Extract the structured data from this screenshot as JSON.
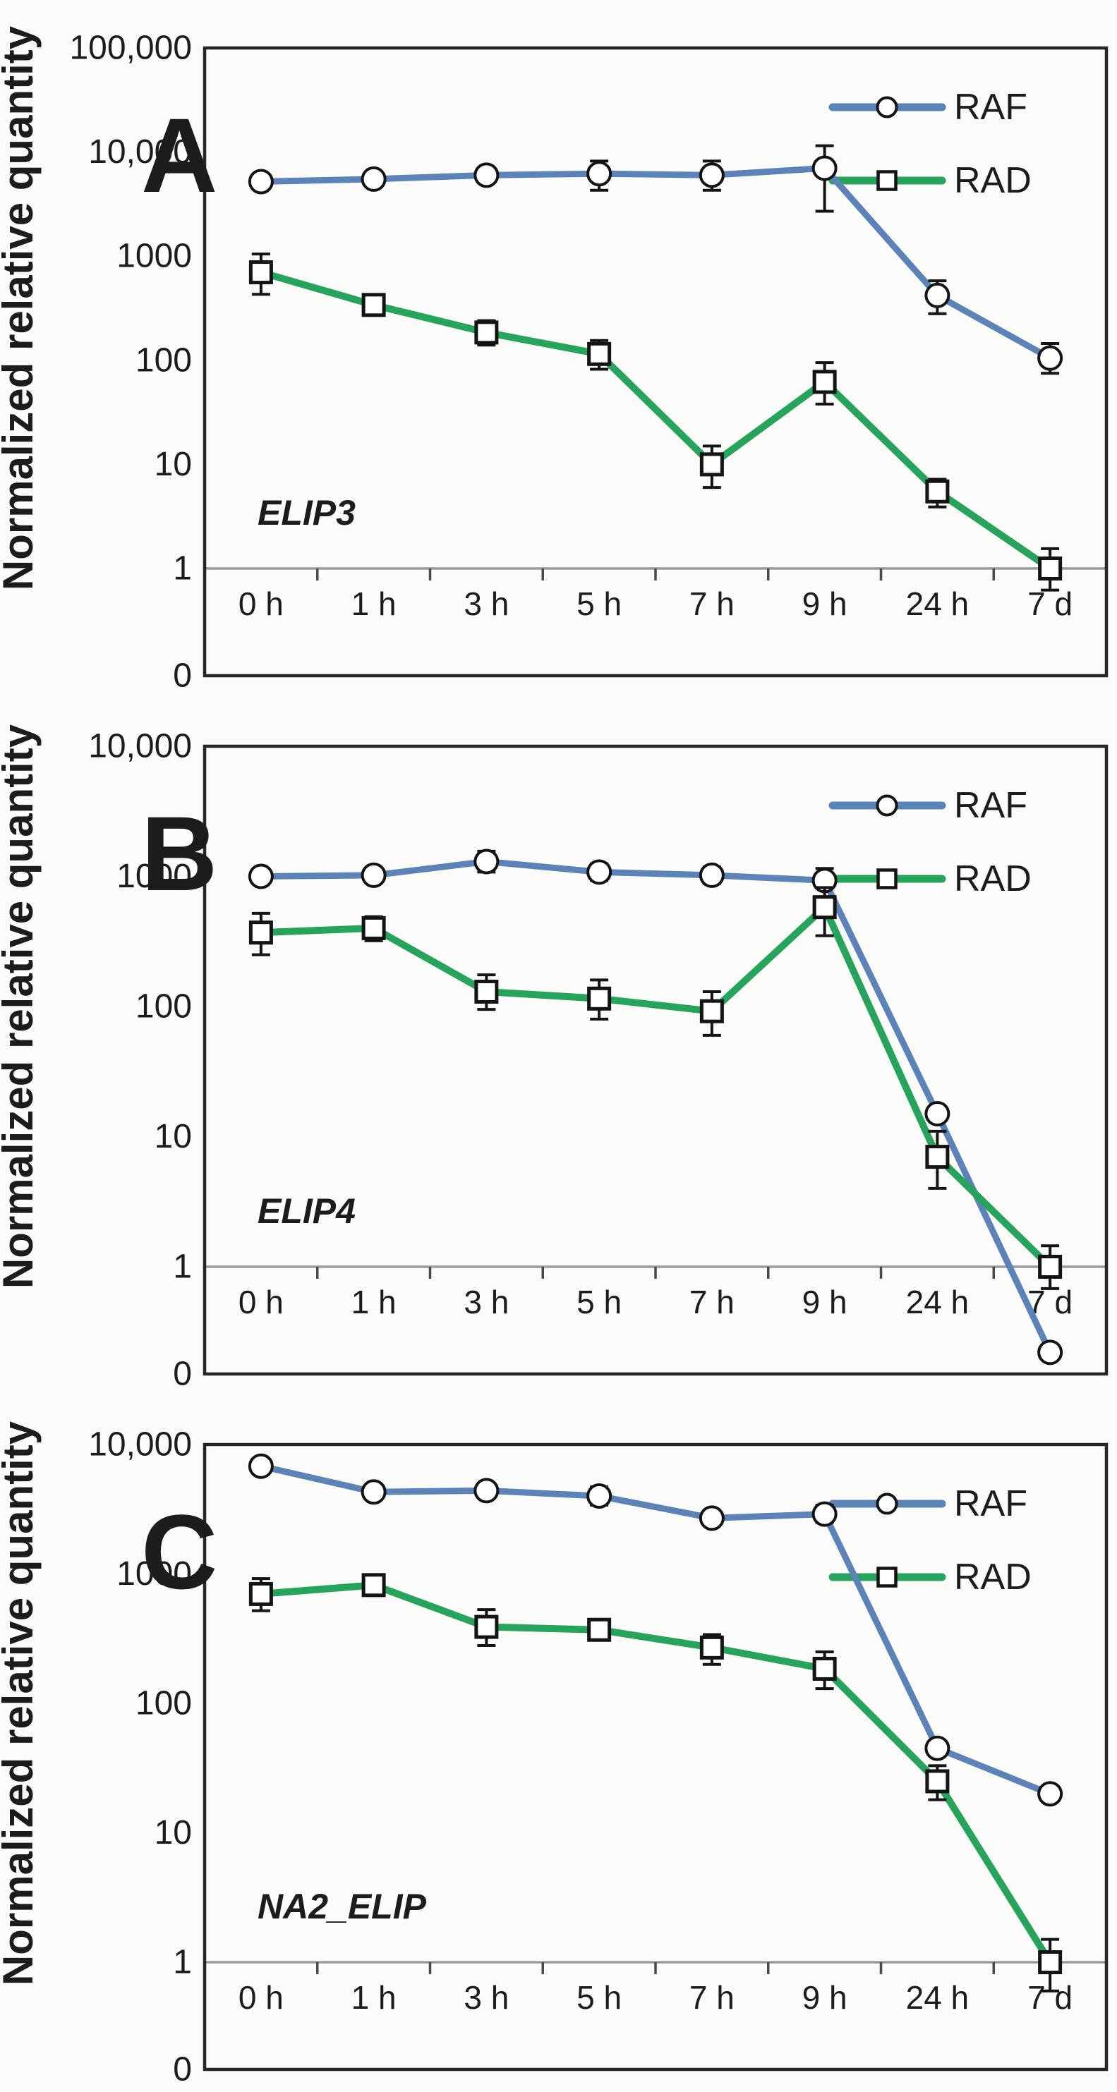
{
  "colors": {
    "raf": "#5b83b8",
    "rad": "#26a45c",
    "frame": "#262626",
    "baseline": "#9b9b9b",
    "tick": "#4a4a4a",
    "text": "#1c1c1c",
    "error": "#141414",
    "marker_fill": "#ffffff",
    "background": "#fbfbfa"
  },
  "chart_data": [
    {
      "type": "line",
      "panel_label": "A",
      "gene_label": "ELIP3",
      "ylabel": "Normalized relative quantity",
      "yscale": "log",
      "ylim": [
        1,
        100000
      ],
      "grid": "off",
      "legend_position": "top-right",
      "y_tick_labels": [
        "100,000",
        "10,000",
        "1000",
        "100",
        "10",
        "1",
        "0"
      ],
      "categories": [
        "0 h",
        "1 h",
        "3 h",
        "5 h",
        "7 h",
        "9 h",
        "24 h",
        "7 d"
      ],
      "series": [
        {
          "name": "RAF",
          "color_key": "raf",
          "marker": "circle",
          "values": [
            5200,
            5500,
            6000,
            6200,
            6000,
            7000,
            420,
            105
          ],
          "error_low": [
            null,
            null,
            null,
            4300,
            4300,
            2700,
            280,
            75
          ],
          "error_high": [
            null,
            null,
            null,
            8200,
            8200,
            11500,
            580,
            145
          ]
        },
        {
          "name": "RAD",
          "color_key": "rad",
          "marker": "square",
          "values": [
            700,
            340,
            185,
            115,
            10,
            62,
            5.5,
            1
          ],
          "error_low": [
            430,
            null,
            140,
            82,
            6,
            38,
            3.9,
            0.62
          ],
          "error_high": [
            1050,
            null,
            240,
            155,
            15,
            95,
            7.2,
            1.55
          ]
        }
      ]
    },
    {
      "type": "line",
      "panel_label": "B",
      "gene_label": "ELIP4",
      "ylabel": "Normalized relative quantity",
      "yscale": "log",
      "ylim": [
        1,
        10000
      ],
      "grid": "off",
      "legend_position": "top-right",
      "y_tick_labels": [
        "10,000",
        "1000",
        "100",
        "10",
        "1",
        "0"
      ],
      "categories": [
        "0 h",
        "1 h",
        "3 h",
        "5 h",
        "7 h",
        "9 h",
        "24 h",
        "7 d"
      ],
      "series": [
        {
          "name": "RAF",
          "color_key": "raf",
          "marker": "circle",
          "values": [
            1000,
            1020,
            1300,
            1080,
            1020,
            930,
            15,
            0.22
          ],
          "error_low": [
            null,
            null,
            1080,
            930,
            880,
            680,
            null,
            null
          ],
          "error_high": [
            null,
            null,
            1560,
            1250,
            1180,
            1150,
            null,
            null
          ]
        },
        {
          "name": "RAD",
          "color_key": "rad",
          "marker": "square",
          "values": [
            370,
            400,
            130,
            115,
            92,
            580,
            7,
            1
          ],
          "error_low": [
            250,
            320,
            95,
            80,
            60,
            350,
            4,
            0.68
          ],
          "error_high": [
            520,
            490,
            175,
            160,
            130,
            820,
            11,
            1.45
          ]
        }
      ]
    },
    {
      "type": "line",
      "panel_label": "C",
      "gene_label": "NA2_ELIP",
      "ylabel": "Normalized relative quantity",
      "yscale": "log",
      "ylim": [
        1,
        10000
      ],
      "grid": "off",
      "legend_position": "top-right",
      "y_tick_labels": [
        "10,000",
        "1000",
        "100",
        "10",
        "1",
        "0"
      ],
      "categories": [
        "0 h",
        "1 h",
        "3 h",
        "5 h",
        "7 h",
        "9 h",
        "24 h",
        "7 d"
      ],
      "series": [
        {
          "name": "RAF",
          "color_key": "raf",
          "marker": "circle",
          "values": [
            6800,
            4300,
            4400,
            4000,
            2700,
            2900,
            45,
            20
          ],
          "error_low": [
            null,
            3800,
            null,
            3400,
            null,
            2500,
            null,
            null
          ],
          "error_high": [
            null,
            4900,
            null,
            4700,
            null,
            3400,
            null,
            null
          ]
        },
        {
          "name": "RAD",
          "color_key": "rad",
          "marker": "square",
          "values": [
            700,
            820,
            390,
            370,
            270,
            185,
            25,
            1
          ],
          "error_low": [
            520,
            null,
            280,
            null,
            200,
            130,
            18,
            0.6
          ],
          "error_high": [
            920,
            null,
            530,
            null,
            340,
            250,
            33,
            1.5
          ]
        }
      ]
    }
  ]
}
